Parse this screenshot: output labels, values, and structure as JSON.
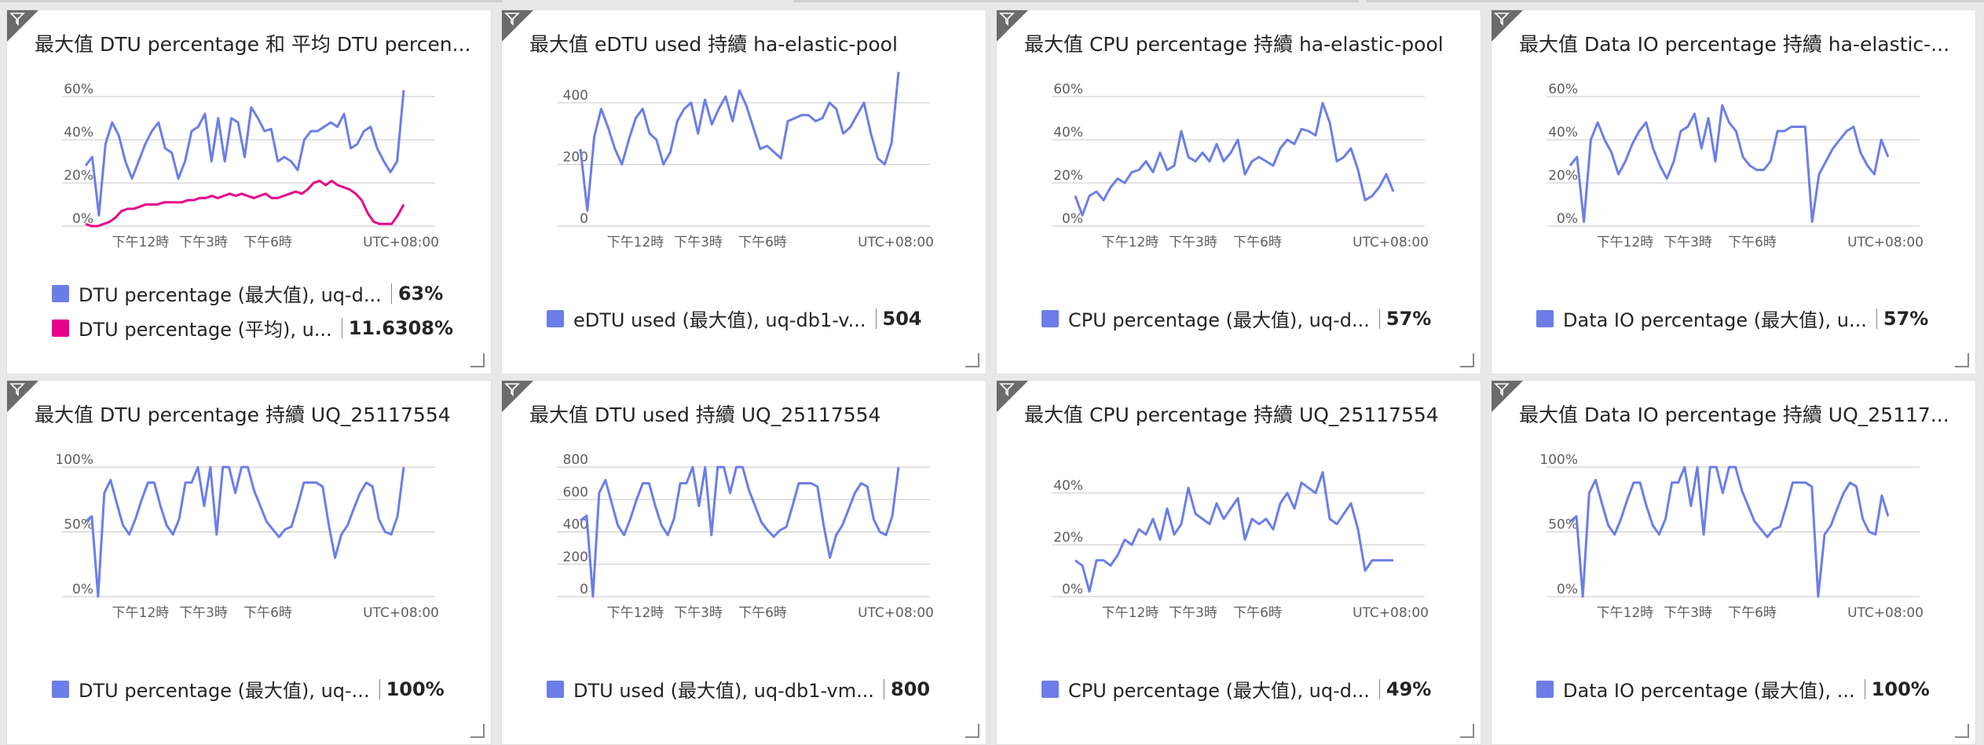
{
  "tiles": [
    {
      "title": "最大值 DTU percentage 和 平均 DTU percen...",
      "chart_data": {
        "type": "line",
        "y_ticks": [
          "0%",
          "20%",
          "40%",
          "60%"
        ],
        "y_max": 60,
        "x_ticks": [
          "下午12時",
          "下午3時",
          "下午6時"
        ],
        "timezone": "UTC+08:00",
        "series": [
          {
            "name": "DTU percentage (最大值), uq-d...",
            "color": "#6b7ee8",
            "values": [
              28,
              32,
              5,
              38,
              48,
              42,
              30,
              22,
              30,
              38,
              44,
              48,
              36,
              34,
              22,
              30,
              44,
              46,
              52,
              30,
              50,
              30,
              50,
              48,
              32,
              55,
              50,
              44,
              45,
              30,
              32,
              30,
              26,
              40,
              44,
              44,
              46,
              48,
              46,
              52,
              36,
              38,
              44,
              46,
              36,
              30,
              25,
              30,
              63
            ]
          },
          {
            "name": "DTU percentage (平均), u...",
            "color": "#e8008a",
            "values": [
              1,
              0,
              0,
              1,
              2,
              4,
              7,
              8,
              8,
              9,
              10,
              10,
              10,
              11,
              11,
              11,
              11,
              12,
              12,
              13,
              13,
              14,
              13,
              14,
              15,
              14,
              15,
              14,
              13,
              14,
              15,
              13,
              13,
              14,
              15,
              16,
              15,
              17,
              20,
              21,
              19,
              21,
              19,
              18,
              17,
              15,
              12,
              6,
              2,
              1,
              1,
              1,
              5,
              10
            ]
          }
        ]
      },
      "legend": [
        {
          "label": "DTU percentage (最大值), uq-d...",
          "value": "63%",
          "color": "#6b7ee8"
        },
        {
          "label": "DTU percentage (平均), u...",
          "value": "11.6308%",
          "color": "#e8008a"
        }
      ]
    },
    {
      "title": "最大值 eDTU used 持續 ha-elastic-pool",
      "chart_data": {
        "type": "line",
        "y_ticks": [
          "0",
          "200",
          "400"
        ],
        "y_max": 420,
        "x_ticks": [
          "下午12時",
          "下午3時",
          "下午6時"
        ],
        "timezone": "UTC+08:00",
        "series": [
          {
            "name": "eDTU used (最大值), uq-db1-v...",
            "color": "#6b7ee8",
            "values": [
              250,
              50,
              290,
              380,
              320,
              250,
              200,
              280,
              350,
              380,
              300,
              280,
              200,
              240,
              340,
              380,
              400,
              300,
              410,
              330,
              380,
              420,
              340,
              440,
              390,
              320,
              250,
              260,
              240,
              220,
              340,
              350,
              360,
              360,
              340,
              350,
              400,
              380,
              300,
              320,
              360,
              400,
              300,
              220,
              200,
              270,
              500
            ]
          }
        ]
      },
      "legend": [
        {
          "label": "eDTU used (最大值), uq-db1-v...",
          "value": "504",
          "color": "#6b7ee8"
        }
      ]
    },
    {
      "title": "最大值 CPU percentage 持續 ha-elastic-pool",
      "chart_data": {
        "type": "line",
        "y_ticks": [
          "0%",
          "20%",
          "40%",
          "60%"
        ],
        "y_max": 60,
        "x_ticks": [
          "下午12時",
          "下午3時",
          "下午6時"
        ],
        "timezone": "UTC+08:00",
        "series": [
          {
            "name": "CPU percentage (最大值), uq-d...",
            "color": "#6b7ee8",
            "values": [
              14,
              5,
              14,
              16,
              12,
              18,
              22,
              20,
              25,
              26,
              30,
              25,
              34,
              26,
              28,
              44,
              32,
              30,
              34,
              30,
              38,
              30,
              34,
              40,
              24,
              30,
              32,
              30,
              28,
              36,
              40,
              38,
              45,
              44,
              42,
              57,
              48,
              30,
              32,
              36,
              26,
              12,
              14,
              18,
              24,
              16
            ]
          }
        ]
      },
      "legend": [
        {
          "label": "CPU percentage (最大值), uq-d...",
          "value": "57%",
          "color": "#6b7ee8"
        }
      ]
    },
    {
      "title": "最大值 Data IO percentage 持續 ha-elastic-...",
      "chart_data": {
        "type": "line",
        "y_ticks": [
          "0%",
          "20%",
          "40%",
          "60%"
        ],
        "y_max": 60,
        "x_ticks": [
          "下午12時",
          "下午3時",
          "下午6時"
        ],
        "timezone": "UTC+08:00",
        "series": [
          {
            "name": "Data IO percentage (最大值), u...",
            "color": "#6b7ee8",
            "values": [
              28,
              32,
              2,
              40,
              48,
              40,
              34,
              24,
              30,
              38,
              44,
              48,
              36,
              28,
              22,
              30,
              44,
              46,
              52,
              36,
              50,
              30,
              56,
              48,
              44,
              32,
              28,
              26,
              26,
              30,
              44,
              44,
              46,
              46,
              46,
              2,
              24,
              30,
              36,
              40,
              44,
              46,
              34,
              28,
              24,
              40,
              32
            ]
          }
        ]
      },
      "legend": [
        {
          "label": "Data IO percentage (最大值), u...",
          "value": "57%",
          "color": "#6b7ee8"
        }
      ]
    },
    {
      "title": "最大值 DTU percentage 持續 UQ_25117554",
      "chart_data": {
        "type": "line",
        "y_ticks": [
          "0%",
          "50%",
          "100%"
        ],
        "y_max": 100,
        "x_ticks": [
          "下午12時",
          "下午3時",
          "下午6時"
        ],
        "timezone": "UTC+08:00",
        "series": [
          {
            "name": "DTU percentage (最大值), uq-...",
            "color": "#6b7ee8",
            "values": [
              58,
              62,
              0,
              80,
              90,
              72,
              55,
              48,
              60,
              75,
              88,
              88,
              70,
              55,
              48,
              60,
              88,
              88,
              100,
              70,
              100,
              48,
              100,
              100,
              80,
              100,
              100,
              82,
              70,
              58,
              52,
              46,
              52,
              54,
              70,
              88,
              88,
              88,
              85,
              55,
              30,
              48,
              55,
              68,
              80,
              88,
              85,
              60,
              50,
              48,
              62,
              100
            ]
          }
        ]
      },
      "legend": [
        {
          "label": "DTU percentage (最大值), uq-...",
          "value": "100%",
          "color": "#6b7ee8"
        }
      ]
    },
    {
      "title": "最大值 DTU used 持續 UQ_25117554",
      "chart_data": {
        "type": "line",
        "y_ticks": [
          "0",
          "200",
          "400",
          "600",
          "800"
        ],
        "y_max": 800,
        "x_ticks": [
          "下午12時",
          "下午3時",
          "下午6時"
        ],
        "timezone": "UTC+08:00",
        "series": [
          {
            "name": "DTU used (最大值), uq-db1-vm...",
            "color": "#6b7ee8",
            "values": [
              470,
              500,
              0,
              640,
              720,
              580,
              440,
              380,
              480,
              600,
              700,
              700,
              560,
              440,
              380,
              480,
              700,
              700,
              800,
              560,
              800,
              380,
              800,
              800,
              640,
              800,
              800,
              660,
              560,
              460,
              410,
              370,
              410,
              430,
              560,
              700,
              700,
              700,
              680,
              440,
              240,
              380,
              440,
              540,
              640,
              700,
              680,
              480,
              400,
              380,
              500,
              800
            ]
          }
        ]
      },
      "legend": [
        {
          "label": "DTU used (最大值), uq-db1-vm...",
          "value": "800",
          "color": "#6b7ee8"
        }
      ]
    },
    {
      "title": "最大值 CPU percentage 持續 UQ_25117554",
      "chart_data": {
        "type": "line",
        "y_ticks": [
          "0%",
          "20%",
          "40%"
        ],
        "y_max": 50,
        "x_ticks": [
          "下午12時",
          "下午3時",
          "下午6時"
        ],
        "timezone": "UTC+08:00",
        "series": [
          {
            "name": "CPU percentage (最大值), uq-d...",
            "color": "#6b7ee8",
            "values": [
              14,
              12,
              2,
              14,
              14,
              12,
              16,
              22,
              20,
              26,
              24,
              30,
              22,
              34,
              24,
              28,
              42,
              32,
              30,
              28,
              36,
              30,
              34,
              38,
              22,
              30,
              28,
              30,
              26,
              36,
              40,
              34,
              44,
              42,
              40,
              48,
              30,
              28,
              32,
              36,
              26,
              10,
              14,
              14,
              14,
              14
            ]
          }
        ]
      },
      "legend": [
        {
          "label": "CPU percentage (最大值), uq-d...",
          "value": "49%",
          "color": "#6b7ee8"
        }
      ]
    },
    {
      "title": "最大值 Data IO percentage 持續 UQ_25117...",
      "chart_data": {
        "type": "line",
        "y_ticks": [
          "0%",
          "50%",
          "100%"
        ],
        "y_max": 100,
        "x_ticks": [
          "下午12時",
          "下午3時",
          "下午6時"
        ],
        "timezone": "UTC+08:00",
        "series": [
          {
            "name": "Data IO percentage (最大值), ...",
            "color": "#6b7ee8",
            "values": [
              58,
              62,
              0,
              80,
              90,
              72,
              55,
              48,
              60,
              75,
              88,
              88,
              70,
              55,
              48,
              60,
              88,
              88,
              100,
              70,
              100,
              48,
              100,
              100,
              80,
              100,
              100,
              82,
              70,
              58,
              52,
              46,
              52,
              54,
              70,
              88,
              88,
              88,
              85,
              0,
              48,
              55,
              68,
              80,
              88,
              85,
              60,
              50,
              48,
              78,
              62
            ]
          }
        ]
      },
      "legend": [
        {
          "label": "Data IO percentage (最大值), ...",
          "value": "100%",
          "color": "#6b7ee8"
        }
      ]
    }
  ]
}
